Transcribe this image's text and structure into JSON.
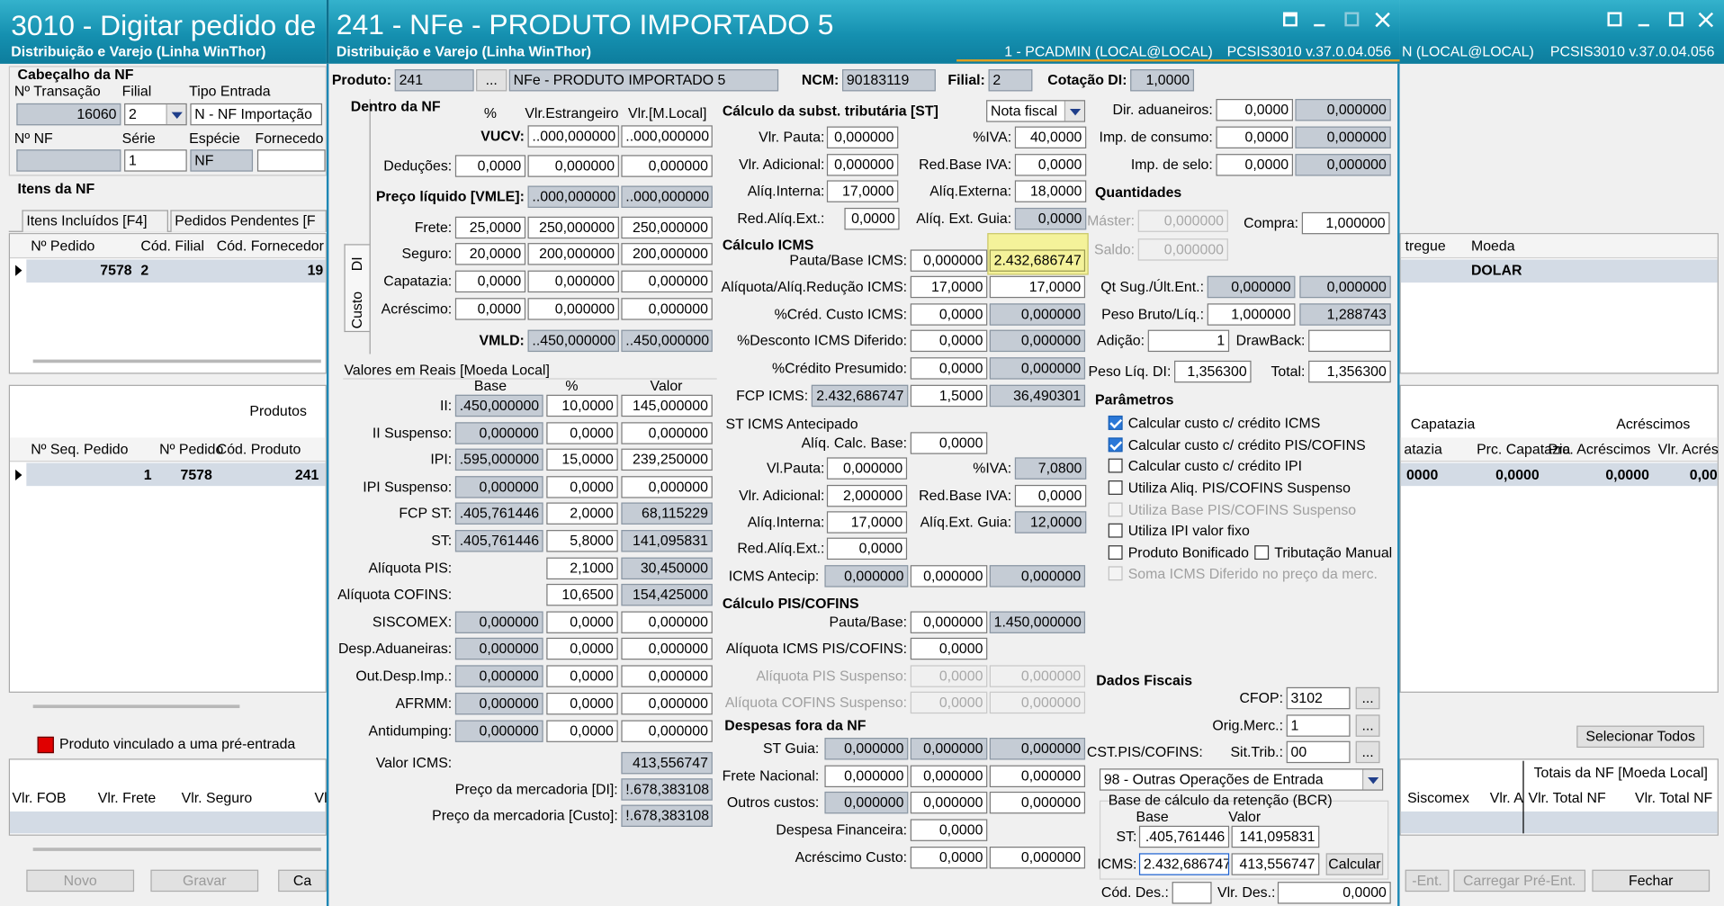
{
  "left_window": {
    "title": "3010 - Digitar pedido de",
    "subtitle": "Distribuição e Varejo (Linha WinThor)",
    "header_section": {
      "title": "Cabeçalho da NF",
      "labels": [
        "Nº Transação",
        "Filial",
        "Tipo Entrada",
        "Nº NF",
        "Série",
        "Espécie",
        "Fornecedo"
      ],
      "fields": [
        "16060",
        "2",
        "N - NF Importação",
        null,
        "1",
        "NF",
        null
      ]
    },
    "items_section": {
      "title": "Itens da NF",
      "tabs": [
        "Itens Incluídos [F4]",
        "Pedidos Pendentes [F"
      ],
      "columns": [
        "Nº Pedido",
        "Cód. Filial",
        "Cód. Fornecedor"
      ],
      "rows": [
        [
          "7578",
          "2",
          "19"
        ]
      ]
    },
    "products_grid": {
      "title": "Produtos",
      "columns": [
        "Nº Seq. Pedido",
        "Nº Pedido",
        "Cód. Produto"
      ],
      "rows": [
        [
          "1",
          "7578",
          "241"
        ]
      ]
    },
    "legend": "Produto vinculado a uma pré-entrada",
    "totals_columns": [
      "Vlr. FOB",
      "Vlr. Frete",
      "Vlr. Seguro",
      "Vl"
    ],
    "buttons": [
      "Novo",
      "Gravar",
      "Ca"
    ]
  },
  "right_window": {
    "user": "N (LOCAL@LOCAL)",
    "version": "PCSIS3010  v.37.0.04.056",
    "items_grid": {
      "columns": [
        "tregue",
        "Moeda"
      ],
      "rows": [
        [
          "DOLAR"
        ]
      ]
    },
    "products_grid": {
      "groups": [
        "Capatazia",
        "Acréscimos"
      ],
      "columns": [
        "atazia",
        "Prc. Capatazia",
        "Prc. Acréscimos",
        "Vlr. Acrés"
      ],
      "rows": [
        [
          "0000",
          "0,0000",
          "0,0000",
          "0,00"
        ]
      ]
    },
    "select_all": "Selecionar Todos",
    "totals": {
      "title": "Totais da NF [Moeda Local]",
      "columns": [
        "Siscomex",
        "Vlr. A",
        "Vlr. Total NF",
        "Vlr. Total NF"
      ]
    },
    "buttons": [
      "-Ent.",
      "Carregar Pré-Ent.",
      "Fechar"
    ]
  },
  "dialog": {
    "title": "241 - NFe - PRODUTO IMPORTADO 5",
    "subtitle": "Distribuição e Varejo (Linha WinThor)",
    "user": "1 - PCADMIN (LOCAL@LOCAL)",
    "version": "PCSIS3010  v.37.0.04.056",
    "tabs": [
      "DI",
      "Custo"
    ],
    "labels": [
      "Dentro da NF",
      "%",
      "Vlr.Estrangeiro",
      "Vlr.[M.Local]",
      "Valores em Reais [Moeda Local]",
      "Base",
      "%",
      "Valor",
      "Cálculo da subst. tributária [ST]",
      "Cálculo ICMS",
      "ST ICMS Antecipado",
      "Cálculo PIS/COFINS",
      "Despesas fora da NF",
      "Quantidades",
      "Parâmetros",
      "Dados Fiscais",
      "Base de cálculo da retenção (BCR)",
      "Base",
      "Valor"
    ],
    "selects": [
      "Nota fiscal",
      "98 - Outras Operações de Entrada"
    ],
    "checkboxes": [
      {
        "label": "Calcular custo c/ crédito ICMS",
        "checked": true,
        "enabled": true
      },
      {
        "label": "Calcular custo c/ crédito PIS/COFINS",
        "checked": true,
        "enabled": true
      },
      {
        "label": "Calcular custo c/ crédito IPI",
        "checked": false,
        "enabled": true
      },
      {
        "label": "Utiliza Aliq. PIS/COFINS Suspenso",
        "checked": false,
        "enabled": true
      },
      {
        "label": "Utiliza Base PIS/COFINS Suspenso",
        "checked": false,
        "enabled": false
      },
      {
        "label": "Utiliza IPI valor fixo",
        "checked": false,
        "enabled": true
      },
      {
        "label": "Produto Bonificado",
        "checked": false,
        "enabled": true
      },
      {
        "label": "Tributação Manual",
        "checked": false,
        "enabled": true
      },
      {
        "label": "Soma ICMS Diferido no preço da merc.",
        "checked": false,
        "enabled": false
      }
    ],
    "sections": {
      "produto": {
        "rows": [
          {
            "label": "Produto:",
            "values": [
              "241",
              "...",
              "NFe - PRODUTO IMPORTADO 5"
            ]
          },
          {
            "label": "NCM:",
            "values": [
              "90183119"
            ]
          },
          {
            "label": "Filial:",
            "values": [
              "2"
            ]
          },
          {
            "label": "Cotação DI:",
            "values": [
              "1,0000"
            ]
          }
        ]
      },
      "dentro": {
        "rows": [
          {
            "label": "VUCV:",
            "values": [
              "..000,000000",
              "..000,000000"
            ]
          },
          {
            "label": "Deduções:",
            "values": [
              "0,0000",
              "0,000000",
              "0,000000"
            ]
          },
          {
            "label": "Preço líquido [VMLE]:",
            "values": [
              "..000,000000",
              "..000,000000"
            ]
          },
          {
            "label": "Frete:",
            "values": [
              "25,0000",
              "250,000000",
              "250,000000"
            ]
          },
          {
            "label": "Seguro:",
            "values": [
              "20,0000",
              "200,000000",
              "200,000000"
            ]
          },
          {
            "label": "Capatazia:",
            "values": [
              "0,0000",
              "0,000000",
              "0,000000"
            ]
          },
          {
            "label": "Acréscimo:",
            "values": [
              "0,0000",
              "0,000000",
              "0,000000"
            ]
          },
          {
            "label": "VMLD:",
            "values": [
              "..450,000000",
              "..450,000000"
            ]
          }
        ]
      },
      "reais": {
        "rows": [
          {
            "label": "II:",
            "values": [
              ".450,000000",
              "10,0000",
              "145,000000"
            ]
          },
          {
            "label": "II Suspenso:",
            "values": [
              "0,000000",
              "0,0000",
              "0,000000"
            ]
          },
          {
            "label": "IPI:",
            "values": [
              ".595,000000",
              "15,0000",
              "239,250000"
            ]
          },
          {
            "label": "IPI Suspenso:",
            "values": [
              "0,000000",
              "0,0000",
              "0,000000"
            ]
          },
          {
            "label": "FCP ST:",
            "values": [
              ".405,761446",
              "2,0000",
              "68,115229"
            ]
          },
          {
            "label": "ST:",
            "values": [
              ".405,761446",
              "5,8000",
              "141,095831"
            ]
          },
          {
            "label": "Alíquota PIS:",
            "values": [
              "2,1000",
              "30,450000"
            ]
          },
          {
            "label": "Alíquota COFINS:",
            "values": [
              "10,6500",
              "154,425000"
            ]
          },
          {
            "label": "SISCOMEX:",
            "values": [
              "0,000000",
              "0,0000",
              "0,000000"
            ]
          },
          {
            "label": "Desp.Aduaneiras:",
            "values": [
              "0,000000",
              "0,0000",
              "0,000000"
            ]
          },
          {
            "label": "Out.Desp.Imp.:",
            "values": [
              "0,000000",
              "0,0000",
              "0,000000"
            ]
          },
          {
            "label": "AFRMM:",
            "values": [
              "0,000000",
              "0,0000",
              "0,000000"
            ]
          },
          {
            "label": "Antidumping:",
            "values": [
              "0,000000",
              "0,0000",
              "0,000000"
            ]
          },
          {
            "label": "Valor ICMS:",
            "values": [
              "413,556747"
            ]
          },
          {
            "label": "Preço da mercadoria [DI]:",
            "values": [
              "!.678,383108"
            ]
          },
          {
            "label": "Preço da mercadoria [Custo]:",
            "values": [
              "!.678,383108"
            ]
          }
        ]
      },
      "st": {
        "rows": [
          {
            "label": "Vlr. Pauta:",
            "values": [
              "0,000000"
            ]
          },
          {
            "label": "%IVA:",
            "values": [
              "40,0000"
            ]
          },
          {
            "label": "Vlr. Adicional:",
            "values": [
              "0,000000"
            ]
          },
          {
            "label": "Red.Base IVA:",
            "values": [
              "0,0000"
            ]
          },
          {
            "label": "Alíq.Interna:",
            "values": [
              "17,0000"
            ]
          },
          {
            "label": "Alíq.Externa:",
            "values": [
              "18,0000"
            ]
          },
          {
            "label": "Red.Alíq.Ext.:",
            "values": [
              "0,0000"
            ]
          },
          {
            "label": "Alíq. Ext. Guia:",
            "values": [
              "0,0000"
            ]
          }
        ]
      },
      "icms": {
        "rows": [
          {
            "label": "Pauta/Base ICMS:",
            "values": [
              "0,000000",
              "2.432,686747"
            ]
          },
          {
            "label": "Alíquota/Alíq.Redução ICMS:",
            "values": [
              "17,0000",
              "17,0000"
            ]
          },
          {
            "label": "%Créd. Custo ICMS:",
            "values": [
              "0,0000",
              "0,000000"
            ]
          },
          {
            "label": "%Desconto ICMS Diferido:",
            "values": [
              "0,0000",
              "0,000000"
            ]
          },
          {
            "label": "%Crédito Presumido:",
            "values": [
              "0,0000",
              "0,000000"
            ]
          },
          {
            "label": "FCP ICMS:",
            "values": [
              "2.432,686747",
              "1,5000",
              "36,490301"
            ]
          }
        ]
      },
      "antecipado": {
        "rows": [
          {
            "label": "Alíq. Calc. Base:",
            "values": [
              "0,0000"
            ]
          },
          {
            "label": "Vl.Pauta:",
            "values": [
              "0,000000"
            ]
          },
          {
            "label": "%IVA:",
            "values": [
              "7,0800"
            ]
          },
          {
            "label": "Vlr. Adicional:",
            "values": [
              "2,000000"
            ]
          },
          {
            "label": "Red.Base IVA:",
            "values": [
              "0,0000"
            ]
          },
          {
            "label": "Alíq.Interna:",
            "values": [
              "17,0000"
            ]
          },
          {
            "label": "Alíq.Ext. Guia:",
            "values": [
              "12,0000"
            ]
          },
          {
            "label": "Red.Alíq.Ext.:",
            "values": [
              "0,0000"
            ]
          },
          {
            "label": "ICMS Antecip:",
            "values": [
              "0,000000",
              "0,000000",
              "0,000000"
            ]
          }
        ]
      },
      "pis_cofins": {
        "rows": [
          {
            "label": "Pauta/Base:",
            "values": [
              "0,000000",
              "1.450,000000"
            ]
          },
          {
            "label": "Alíquota ICMS PIS/COFINS:",
            "values": [
              "0,0000"
            ]
          },
          {
            "label": "Alíquota PIS Suspenso:",
            "values": [
              "0,0000",
              "0,000000"
            ]
          },
          {
            "label": "Alíquota COFINS Suspenso:",
            "values": [
              "0,0000",
              "0,000000"
            ]
          }
        ]
      },
      "despesas": {
        "rows": [
          {
            "label": "ST Guia:",
            "values": [
              "0,000000",
              "0,000000",
              "0,000000"
            ]
          },
          {
            "label": "Frete Nacional:",
            "values": [
              "0,000000",
              "0,000000",
              "0,000000"
            ]
          },
          {
            "label": "Outros custos:",
            "values": [
              "0,000000",
              "0,000000",
              "0,000000"
            ]
          },
          {
            "label": "Despesa Financeira:",
            "values": [
              "0,0000"
            ]
          },
          {
            "label": "Acréscimo Custo:",
            "values": [
              "0,0000",
              "0,000000"
            ]
          }
        ]
      },
      "impostos": {
        "rows": [
          {
            "label": "Dir. aduaneiros:",
            "values": [
              "0,0000",
              "0,000000"
            ]
          },
          {
            "label": "Imp. de consumo:",
            "values": [
              "0,0000",
              "0,000000"
            ]
          },
          {
            "label": "Imp. de selo:",
            "values": [
              "0,0000",
              "0,000000"
            ]
          }
        ]
      },
      "quantidades": {
        "rows": [
          {
            "label": "Máster:",
            "values": [
              "0,000000"
            ]
          },
          {
            "label": "Compra:",
            "values": [
              "1,000000"
            ]
          },
          {
            "label": "Saldo:",
            "values": [
              "0,000000"
            ]
          },
          {
            "label": "Qt Sug./Últ.Ent.:",
            "values": [
              "0,000000",
              "0,000000"
            ]
          },
          {
            "label": "Peso Bruto/Líq.:",
            "values": [
              "1,000000",
              "1,288743"
            ]
          },
          {
            "label": "Adição:",
            "values": [
              "1"
            ]
          },
          {
            "label": "DrawBack:",
            "values": [
              null
            ]
          },
          {
            "label": "Peso Líq. DI:",
            "values": [
              "1,356300"
            ]
          },
          {
            "label": "Total:",
            "values": [
              "1,356300"
            ]
          }
        ]
      },
      "fiscal": {
        "rows": [
          {
            "label": "CFOP:",
            "values": [
              "3102",
              "..."
            ]
          },
          {
            "label": "Orig.Merc.:",
            "values": [
              "1",
              "..."
            ]
          },
          {
            "label": "CST.PIS/COFINS:",
            "values": []
          },
          {
            "label": "Sit.Trib.:",
            "values": [
              "00",
              "..."
            ]
          }
        ]
      },
      "bcr": {
        "rows": [
          {
            "label": "ST:",
            "values": [
              ".405,761446",
              "141,095831"
            ]
          },
          {
            "label": "ICMS:",
            "values": [
              "2.432,686747",
              "413,556747",
              "Calcular"
            ]
          },
          {
            "label": "Cód. Des.:",
            "values": [
              null
            ]
          },
          {
            "label": "Vlr. Des.:",
            "values": [
              "0,0000"
            ]
          }
        ]
      }
    }
  }
}
